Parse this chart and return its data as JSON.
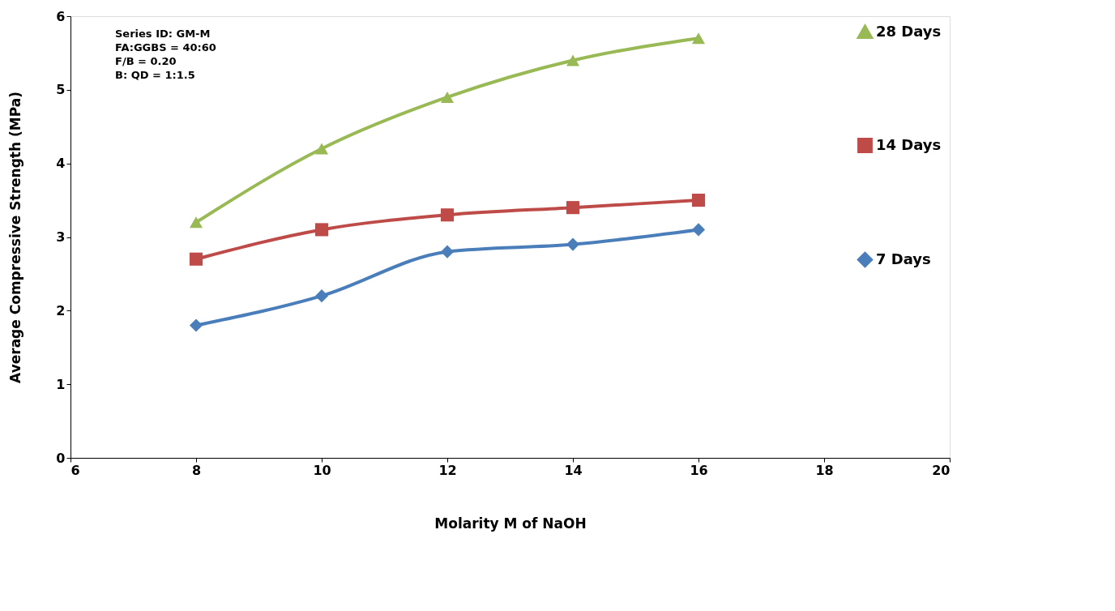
{
  "chart_data": {
    "type": "line",
    "xlabel": "Molarity M of NaOH",
    "ylabel": "Average Compressive Strength (MPa)",
    "x": [
      8,
      10,
      12,
      14,
      16
    ],
    "series": [
      {
        "name": "28 Days",
        "color": "#98b954",
        "marker": "triangle",
        "values": [
          3.2,
          4.2,
          4.9,
          5.4,
          5.7
        ]
      },
      {
        "name": "14 Days",
        "color": "#be4b48",
        "marker": "square",
        "values": [
          2.7,
          3.1,
          3.3,
          3.4,
          3.5
        ]
      },
      {
        "name": "7 Days",
        "color": "#4a7ebb",
        "marker": "diamond",
        "values": [
          1.8,
          2.2,
          2.8,
          2.9,
          3.1
        ]
      }
    ],
    "xlim": [
      6,
      20
    ],
    "xticks": [
      6,
      8,
      10,
      12,
      14,
      16,
      18,
      20
    ],
    "ylim": [
      0,
      6
    ],
    "yticks": [
      0,
      1,
      2,
      3,
      4,
      5,
      6
    ],
    "grid": false,
    "legend": "top right",
    "line_style": "solid",
    "annotations": [
      "Series ID: GM-M",
      "FA:GGBS = 40:60",
      "F/B = 0.20",
      "B: QD = 1:1.5"
    ]
  }
}
